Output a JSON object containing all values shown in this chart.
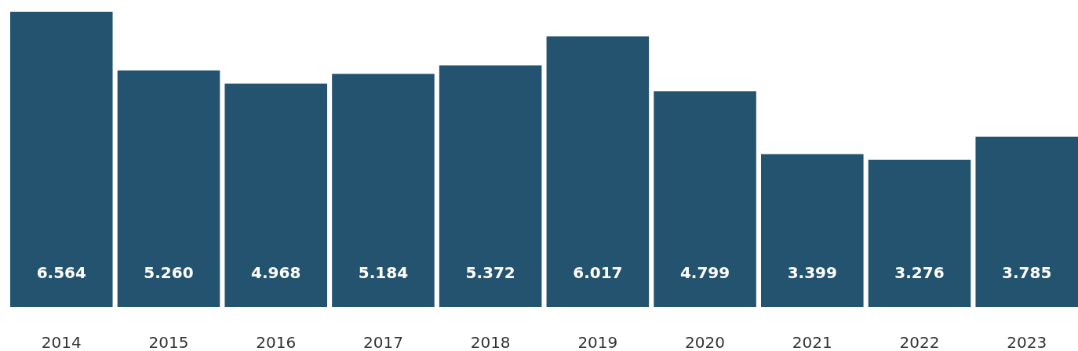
{
  "chart_data": {
    "type": "bar",
    "categories": [
      "2014",
      "2015",
      "2016",
      "2017",
      "2018",
      "2019",
      "2020",
      "2021",
      "2022",
      "2023"
    ],
    "values": [
      6.564,
      5.26,
      4.968,
      5.184,
      5.372,
      6.017,
      4.799,
      3.399,
      3.276,
      3.785
    ],
    "value_labels": [
      "6.564",
      "5.260",
      "4.968",
      "5.184",
      "5.372",
      "6.017",
      "4.799",
      "3.399",
      "3.276",
      "3.785"
    ],
    "color": "#24536f"
  }
}
